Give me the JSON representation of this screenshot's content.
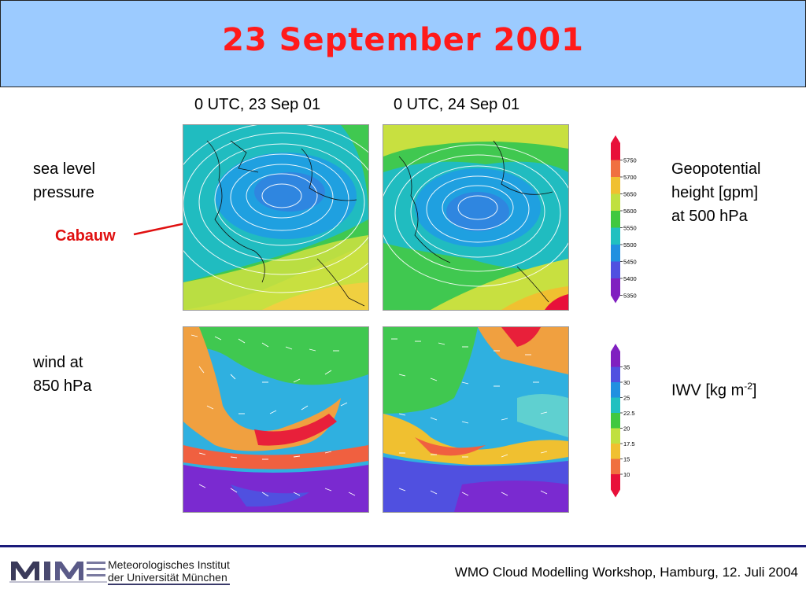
{
  "title": "23 September 2001",
  "columns": [
    "0 UTC, 23 Sep 01",
    "0 UTC, 24 Sep 01"
  ],
  "rows": {
    "top_label": [
      "sea level",
      "pressure"
    ],
    "bottom_label": [
      "wind at",
      "850 hPa"
    ]
  },
  "annotation": "Cabauw",
  "legend_top": {
    "label": [
      "Geopotential",
      "height [gpm]",
      "at 500 hPa"
    ],
    "ticks": [
      "5750",
      "5700",
      "5650",
      "5600",
      "5550",
      "5500",
      "5450",
      "5400",
      "5350"
    ],
    "colors": [
      "#e8103a",
      "#f07040",
      "#f0c030",
      "#c0e040",
      "#40c840",
      "#20c0c0",
      "#2090e0",
      "#5050e0",
      "#8020c0"
    ]
  },
  "legend_bottom": {
    "label": "IWV [kg m",
    "label_sup": "-2",
    "label_end": "]",
    "ticks": [
      "35",
      "30",
      "25",
      "22.5",
      "20",
      "17.5",
      "15",
      "10"
    ],
    "colors": [
      "#8020c0",
      "#5050e0",
      "#2090e0",
      "#20c0c0",
      "#40c840",
      "#c0e040",
      "#f0c030",
      "#f07040",
      "#e8103a"
    ]
  },
  "footer": {
    "text": "WMO Cloud Modelling Workshop, Hamburg, 12. Juli 2004",
    "logo_line1": "Meteorologisches Institut",
    "logo_line2": "der Universität München"
  }
}
